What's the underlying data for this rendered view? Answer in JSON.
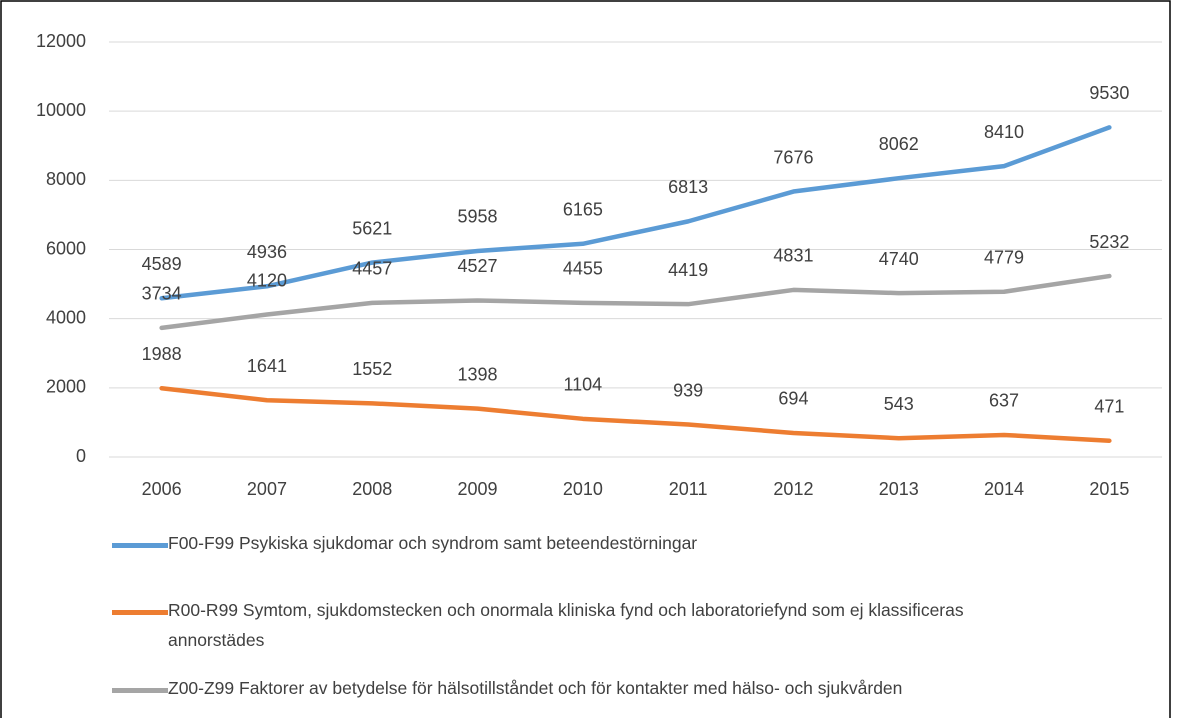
{
  "chart_data": {
    "type": "line",
    "categories": [
      "2006",
      "2007",
      "2008",
      "2009",
      "2010",
      "2011",
      "2012",
      "2013",
      "2014",
      "2015"
    ],
    "series": [
      {
        "name": "F00-F99 Psykiska sjukdomar och syndrom samt beteendestörningar",
        "color": "#5b9bd5",
        "values": [
          4589,
          4936,
          5621,
          5958,
          6165,
          6813,
          7676,
          8062,
          8410,
          9530
        ]
      },
      {
        "name": "R00-R99 Symtom, sjukdomstecken och onormala kliniska fynd och laboratoriefynd som ej klassificeras annorstädes",
        "color": "#ed7d31",
        "values": [
          1988,
          1641,
          1552,
          1398,
          1104,
          939,
          694,
          543,
          637,
          471
        ]
      },
      {
        "name": "Z00-Z99 Faktorer av betydelse för hälsotillståndet och för kontakter med hälso- och sjukvården",
        "color": "#a5a5a5",
        "values": [
          3734,
          4120,
          4457,
          4527,
          4455,
          4419,
          4831,
          4740,
          4779,
          5232
        ]
      }
    ],
    "ylim": [
      0,
      12000
    ],
    "yticks": [
      0,
      2000,
      4000,
      6000,
      8000,
      10000,
      12000
    ],
    "grid": true,
    "legend": "bottom"
  }
}
